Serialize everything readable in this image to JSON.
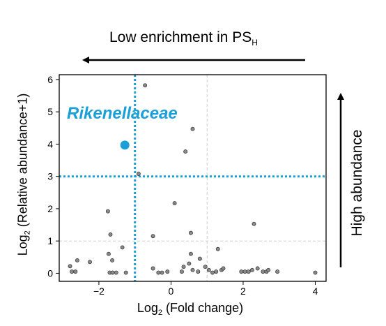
{
  "chart_data": {
    "type": "scatter",
    "xlabel_main": "Log",
    "xlabel_sub": "2",
    "xlabel_rest": " (Fold change)",
    "ylabel_main": "Log",
    "ylabel_sub": "2",
    "ylabel_rest": " (Relative  abundance+1)",
    "xlim": [
      -3.1,
      4.3
    ],
    "ylim": [
      -0.25,
      6.15
    ],
    "xticks": [
      -2,
      0,
      2,
      4
    ],
    "xtick_labels": [
      "−2",
      "0",
      "2",
      "4"
    ],
    "yticks": [
      0,
      1,
      2,
      3,
      4,
      5,
      6
    ],
    "ytick_labels": [
      "0",
      "1",
      "2",
      "3",
      "4",
      "5",
      "6"
    ],
    "grid": "dashed reference lines at x=1 and y=1",
    "thresholds": {
      "x": -1,
      "y": 3
    },
    "colors": {
      "points": "#8a8a8a",
      "point_stroke": "#333333",
      "highlight": "#1a9fd9",
      "threshold": "#1a9fd9",
      "grid": "#cccccc"
    },
    "highlight": {
      "name": "Rikenellaceae",
      "x": -1.28,
      "y": 3.97
    },
    "points": [
      {
        "x": -1.75,
        "y": 1.92
      },
      {
        "x": -1.68,
        "y": 1.2
      },
      {
        "x": -1.35,
        "y": 0.8
      },
      {
        "x": -1.73,
        "y": 0.6
      },
      {
        "x": -1.63,
        "y": 0.4
      },
      {
        "x": -2.25,
        "y": 0.35
      },
      {
        "x": -2.6,
        "y": 0.4
      },
      {
        "x": -2.8,
        "y": 0.22
      },
      {
        "x": -2.75,
        "y": 0.05
      },
      {
        "x": -2.65,
        "y": 0.05
      },
      {
        "x": -1.7,
        "y": 0.02
      },
      {
        "x": -1.62,
        "y": 0.02
      },
      {
        "x": -1.52,
        "y": 0.02
      },
      {
        "x": -1.25,
        "y": 0.02
      },
      {
        "x": -0.9,
        "y": 3.08
      },
      {
        "x": -0.72,
        "y": 5.82
      },
      {
        "x": -0.5,
        "y": 1.15
      },
      {
        "x": -0.5,
        "y": 0.15
      },
      {
        "x": -0.35,
        "y": 0.02
      },
      {
        "x": -0.25,
        "y": 0.02
      },
      {
        "x": -0.1,
        "y": 0.05
      },
      {
        "x": 0.1,
        "y": 2.17
      },
      {
        "x": 0.4,
        "y": 3.77
      },
      {
        "x": 0.6,
        "y": 4.47
      },
      {
        "x": 0.55,
        "y": 1.25
      },
      {
        "x": 0.55,
        "y": 0.6
      },
      {
        "x": 0.5,
        "y": 0.3
      },
      {
        "x": 0.35,
        "y": 0.2
      },
      {
        "x": 0.3,
        "y": 0.05
      },
      {
        "x": 0.6,
        "y": 0.1
      },
      {
        "x": 0.75,
        "y": 0.05
      },
      {
        "x": 0.8,
        "y": 0.45
      },
      {
        "x": 0.95,
        "y": 0.2
      },
      {
        "x": 1.05,
        "y": 0.1
      },
      {
        "x": 1.15,
        "y": 0.02
      },
      {
        "x": 1.25,
        "y": 0.05
      },
      {
        "x": 1.3,
        "y": 0.75
      },
      {
        "x": 1.4,
        "y": 0.1
      },
      {
        "x": 1.45,
        "y": 0.15
      },
      {
        "x": 1.95,
        "y": 0.05
      },
      {
        "x": 2.05,
        "y": 0.05
      },
      {
        "x": 2.15,
        "y": 0.05
      },
      {
        "x": 2.25,
        "y": 0.1
      },
      {
        "x": 2.3,
        "y": 1.53
      },
      {
        "x": 2.4,
        "y": 0.15
      },
      {
        "x": 2.55,
        "y": 0.05
      },
      {
        "x": 2.65,
        "y": 0.05
      },
      {
        "x": 2.7,
        "y": 0.1
      },
      {
        "x": 2.95,
        "y": 0.05
      },
      {
        "x": 4.0,
        "y": 0.02
      }
    ]
  },
  "annotations": {
    "enrichment_main": "Low enrichment in PS",
    "enrichment_sub": "H",
    "abundance": "High abundance"
  }
}
